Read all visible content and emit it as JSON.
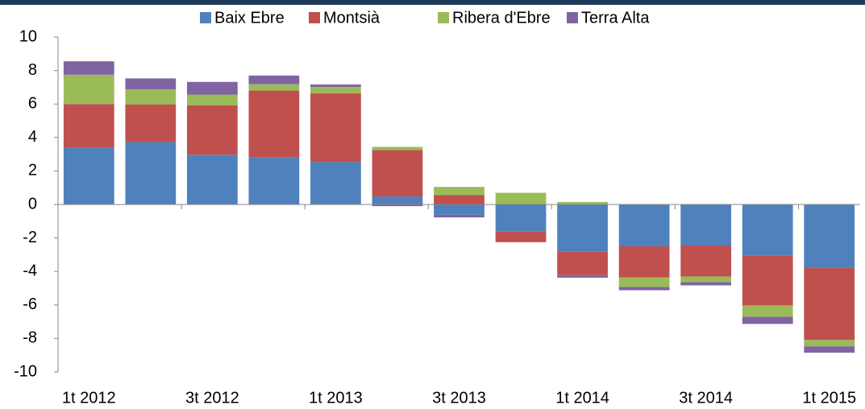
{
  "chart_data": {
    "type": "stacked_bar",
    "categories": [
      "1t 2012",
      null,
      "3t 2012",
      null,
      "1t 2013",
      null,
      "3t 2013",
      null,
      "1t 2014",
      null,
      "3t 2014",
      null,
      "1t 2015"
    ],
    "series": [
      {
        "name": "Baix Ebre",
        "color": "#4f81bd",
        "values": [
          3.4,
          3.73,
          2.97,
          2.82,
          2.54,
          0.48,
          -0.62,
          -1.6,
          -2.82,
          -2.5,
          -2.45,
          -3.06,
          -3.78
        ]
      },
      {
        "name": "Montsià",
        "color": "#c0504d",
        "values": [
          2.6,
          2.25,
          2.96,
          3.98,
          4.1,
          2.77,
          0.57,
          -0.65,
          -1.4,
          -1.85,
          -1.85,
          -2.97,
          -4.31
        ]
      },
      {
        "name": "Ribera d'Ebre",
        "color": "#9bbb59",
        "values": [
          1.75,
          0.9,
          0.63,
          0.38,
          0.38,
          0.19,
          0.48,
          0.7,
          0.15,
          -0.58,
          -0.34,
          -0.67,
          -0.38
        ]
      },
      {
        "name": "Terra Alta",
        "color": "#8064a2",
        "values": [
          0.8,
          0.65,
          0.76,
          0.52,
          0.15,
          -0.1,
          -0.15,
          0,
          -0.15,
          -0.19,
          -0.19,
          -0.43,
          -0.38
        ]
      }
    ],
    "ylim": [
      -10,
      10
    ],
    "yticks": [
      -10,
      -8,
      -6,
      -4,
      -2,
      0,
      2,
      4,
      6,
      8,
      10
    ],
    "legend": "top"
  }
}
